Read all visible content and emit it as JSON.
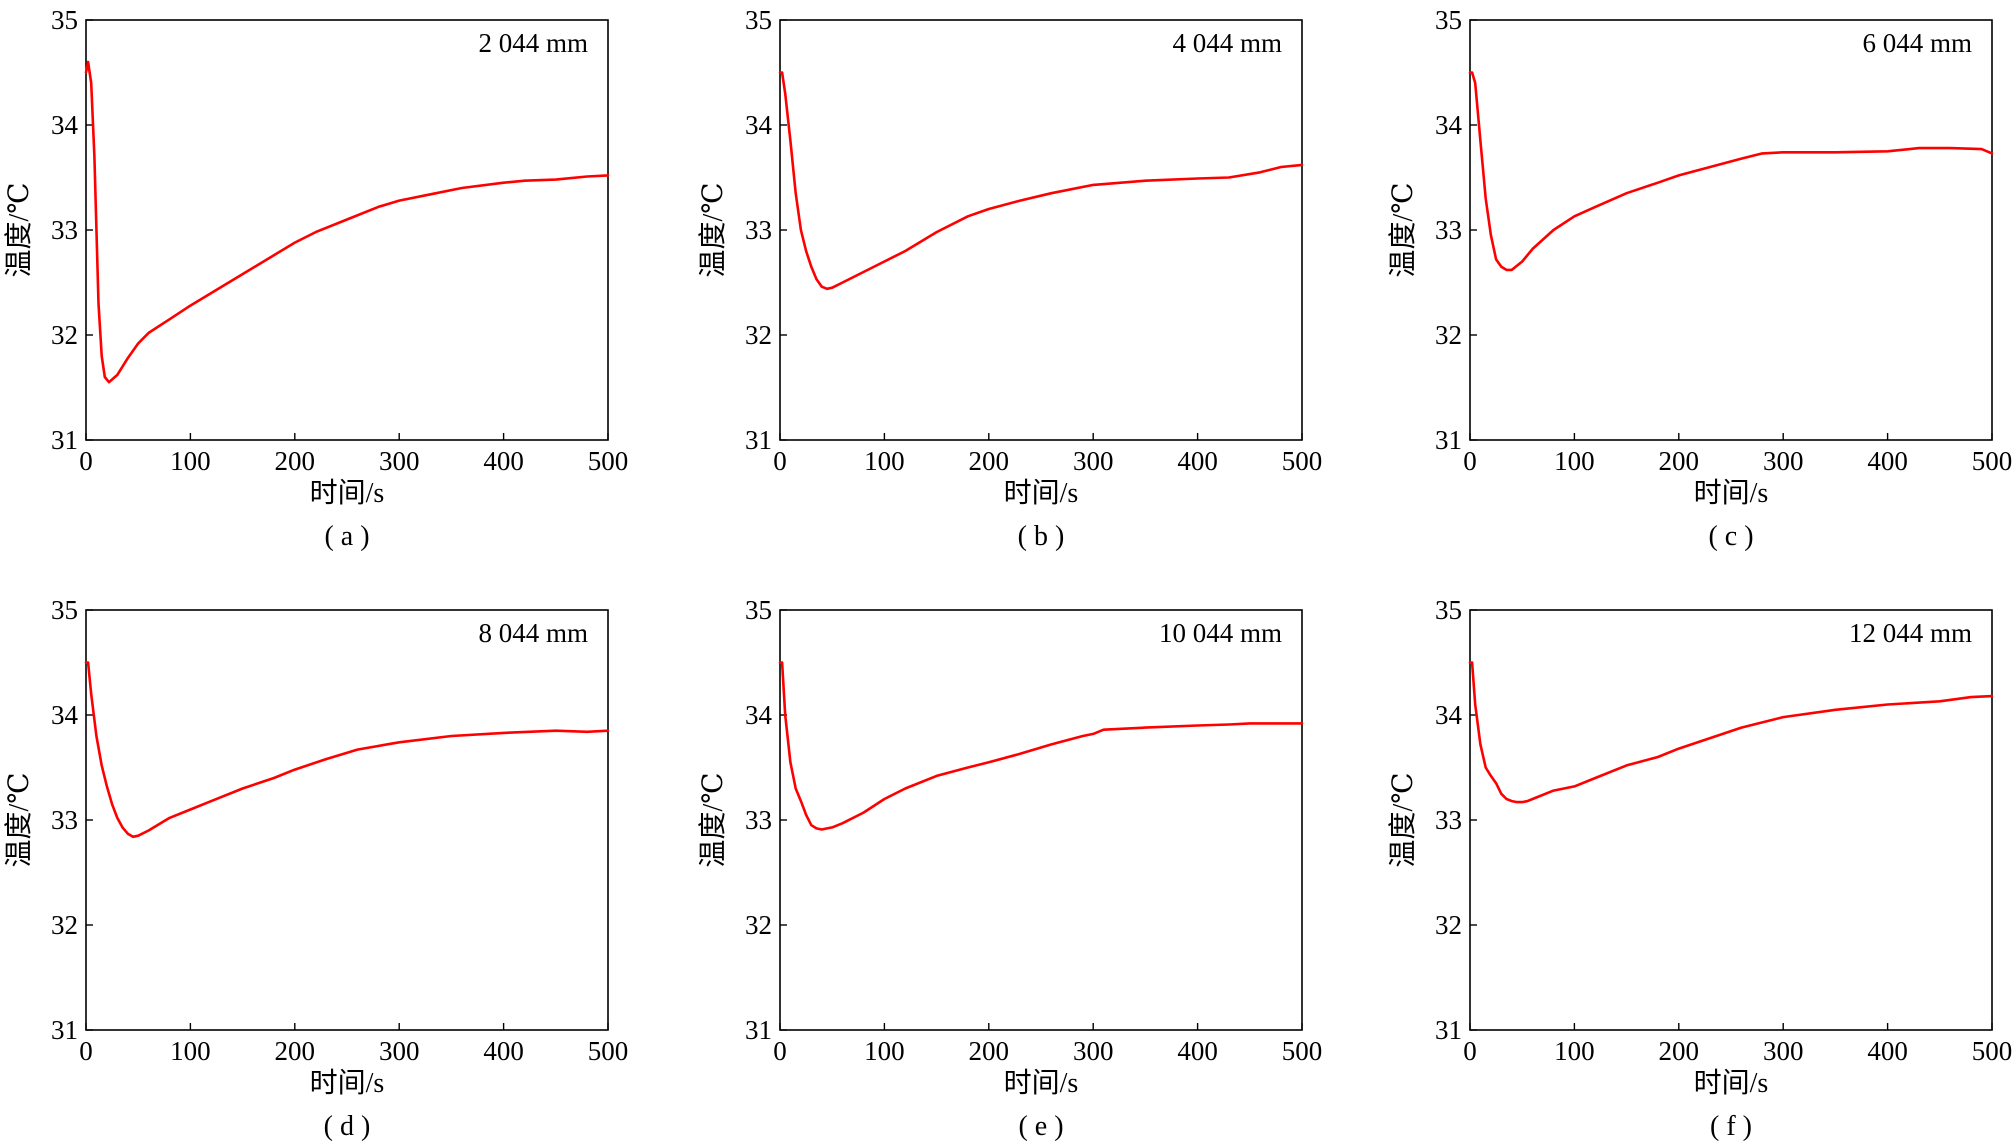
{
  "chart_data": [
    {
      "panel": "( a )",
      "type": "line",
      "annotation": "2 044 mm",
      "xlabel": "时间/s",
      "ylabel": "温度/℃",
      "xlim": [
        0,
        500
      ],
      "ylim": [
        31,
        35
      ],
      "xticks": [
        0,
        100,
        200,
        300,
        400,
        500
      ],
      "yticks": [
        31,
        32,
        33,
        34,
        35
      ],
      "series": [
        {
          "color": "#ff0000",
          "x": [
            0,
            2,
            5,
            8,
            12,
            15,
            18,
            22,
            30,
            40,
            50,
            60,
            80,
            100,
            120,
            150,
            180,
            200,
            220,
            250,
            280,
            300,
            330,
            360,
            400,
            420,
            450,
            480,
            500
          ],
          "y": [
            34.5,
            34.6,
            34.4,
            33.7,
            32.3,
            31.8,
            31.6,
            31.55,
            31.62,
            31.78,
            31.92,
            32.02,
            32.15,
            32.28,
            32.4,
            32.58,
            32.76,
            32.88,
            32.98,
            33.1,
            33.22,
            33.28,
            33.34,
            33.4,
            33.45,
            33.47,
            33.48,
            33.51,
            33.52
          ]
        }
      ]
    },
    {
      "panel": "( b )",
      "type": "line",
      "annotation": "4 044 mm",
      "xlabel": "时间/s",
      "ylabel": "温度/℃",
      "xlim": [
        0,
        500
      ],
      "ylim": [
        31,
        35
      ],
      "xticks": [
        0,
        100,
        200,
        300,
        400,
        500
      ],
      "yticks": [
        31,
        32,
        33,
        34,
        35
      ],
      "series": [
        {
          "color": "#ff0000",
          "x": [
            0,
            2,
            5,
            10,
            15,
            20,
            25,
            30,
            35,
            40,
            45,
            50,
            60,
            80,
            100,
            120,
            150,
            180,
            200,
            230,
            260,
            300,
            350,
            400,
            430,
            460,
            480,
            500
          ],
          "y": [
            34.5,
            34.5,
            34.3,
            33.85,
            33.35,
            33.0,
            32.8,
            32.65,
            32.53,
            32.46,
            32.44,
            32.45,
            32.5,
            32.6,
            32.7,
            32.8,
            32.98,
            33.13,
            33.2,
            33.28,
            33.35,
            33.43,
            33.47,
            33.49,
            33.5,
            33.55,
            33.6,
            33.62
          ]
        }
      ]
    },
    {
      "panel": "( c )",
      "type": "line",
      "annotation": "6 044 mm",
      "xlabel": "时间/s",
      "ylabel": "温度/℃",
      "xlim": [
        0,
        500
      ],
      "ylim": [
        31,
        35
      ],
      "xticks": [
        0,
        100,
        200,
        300,
        400,
        500
      ],
      "yticks": [
        31,
        32,
        33,
        34,
        35
      ],
      "series": [
        {
          "color": "#ff0000",
          "x": [
            0,
            2,
            5,
            10,
            15,
            20,
            25,
            30,
            35,
            40,
            50,
            60,
            80,
            100,
            120,
            150,
            180,
            200,
            230,
            260,
            280,
            300,
            350,
            400,
            430,
            460,
            490,
            500
          ],
          "y": [
            34.5,
            34.5,
            34.4,
            33.85,
            33.3,
            32.95,
            32.72,
            32.65,
            32.62,
            32.62,
            32.7,
            32.82,
            33.0,
            33.13,
            33.22,
            33.35,
            33.45,
            33.52,
            33.6,
            33.68,
            33.73,
            33.74,
            33.74,
            33.75,
            33.78,
            33.78,
            33.77,
            33.73
          ]
        }
      ]
    },
    {
      "panel": "( d )",
      "type": "line",
      "annotation": "8 044 mm",
      "xlabel": "时间/s",
      "ylabel": "温度/℃",
      "xlim": [
        0,
        500
      ],
      "ylim": [
        31,
        35
      ],
      "xticks": [
        0,
        100,
        200,
        300,
        400,
        500
      ],
      "yticks": [
        31,
        32,
        33,
        34,
        35
      ],
      "series": [
        {
          "color": "#ff0000",
          "x": [
            0,
            2,
            5,
            10,
            15,
            20,
            25,
            30,
            35,
            40,
            45,
            50,
            60,
            80,
            100,
            120,
            150,
            180,
            200,
            230,
            260,
            300,
            350,
            400,
            450,
            480,
            500
          ],
          "y": [
            34.5,
            34.5,
            34.2,
            33.8,
            33.52,
            33.32,
            33.15,
            33.02,
            32.93,
            32.87,
            32.84,
            32.85,
            32.9,
            33.02,
            33.1,
            33.18,
            33.3,
            33.4,
            33.48,
            33.58,
            33.67,
            33.74,
            33.8,
            33.83,
            33.85,
            33.84,
            33.85
          ]
        }
      ]
    },
    {
      "panel": "( e )",
      "type": "line",
      "annotation": "10 044 mm",
      "xlabel": "时间/s",
      "ylabel": "温度/℃",
      "xlim": [
        0,
        500
      ],
      "ylim": [
        31,
        35
      ],
      "xticks": [
        0,
        100,
        200,
        300,
        400,
        500
      ],
      "yticks": [
        31,
        32,
        33,
        34,
        35
      ],
      "series": [
        {
          "color": "#ff0000",
          "x": [
            0,
            2,
            5,
            10,
            15,
            20,
            25,
            30,
            35,
            40,
            45,
            50,
            60,
            80,
            100,
            120,
            150,
            180,
            200,
            230,
            260,
            290,
            300,
            310,
            350,
            400,
            430,
            450,
            500
          ],
          "y": [
            34.5,
            34.5,
            34.0,
            33.55,
            33.3,
            33.18,
            33.05,
            32.95,
            32.92,
            32.91,
            32.92,
            32.93,
            32.97,
            33.07,
            33.2,
            33.3,
            33.42,
            33.5,
            33.55,
            33.63,
            33.72,
            33.8,
            33.82,
            33.86,
            33.88,
            33.9,
            33.91,
            33.92,
            33.92
          ]
        }
      ]
    },
    {
      "panel": "( f )",
      "type": "line",
      "annotation": "12 044 mm",
      "xlabel": "时间/s",
      "ylabel": "温度/℃",
      "xlim": [
        0,
        500
      ],
      "ylim": [
        31,
        35
      ],
      "xticks": [
        0,
        100,
        200,
        300,
        400,
        500
      ],
      "yticks": [
        31,
        32,
        33,
        34,
        35
      ],
      "series": [
        {
          "color": "#ff0000",
          "x": [
            0,
            2,
            5,
            10,
            15,
            20,
            25,
            30,
            35,
            40,
            45,
            50,
            55,
            60,
            80,
            100,
            120,
            150,
            180,
            200,
            230,
            260,
            300,
            350,
            400,
            450,
            480,
            500
          ],
          "y": [
            34.5,
            34.5,
            34.1,
            33.72,
            33.5,
            33.42,
            33.35,
            33.25,
            33.2,
            33.18,
            33.17,
            33.17,
            33.18,
            33.2,
            33.28,
            33.32,
            33.4,
            33.52,
            33.6,
            33.68,
            33.78,
            33.88,
            33.98,
            34.05,
            34.1,
            34.13,
            34.17,
            34.18
          ]
        }
      ]
    }
  ]
}
